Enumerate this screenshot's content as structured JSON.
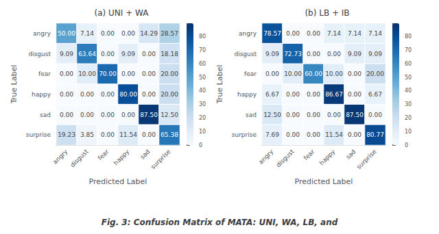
{
  "caption": "Fig. 3: Confusion Matrix of MATA: UNI, WA, LB, and",
  "chart_data": [
    {
      "type": "heatmap",
      "title": "(a) UNI + WA",
      "xlabel": "Predicted Label",
      "ylabel": "True Label",
      "categories": [
        "angry",
        "disgust",
        "fear",
        "happy",
        "sad",
        "surprise"
      ],
      "values": [
        [
          50.0,
          7.14,
          0.0,
          0.0,
          14.29,
          28.57
        ],
        [
          9.09,
          63.64,
          0.0,
          9.09,
          0.0,
          18.18
        ],
        [
          0.0,
          10.0,
          70.0,
          0.0,
          0.0,
          20.0
        ],
        [
          0.0,
          0.0,
          0.0,
          80.0,
          0.0,
          20.0
        ],
        [
          0.0,
          0.0,
          0.0,
          0.0,
          87.5,
          12.5
        ],
        [
          19.23,
          3.85,
          0.0,
          11.54,
          0.0,
          65.38
        ]
      ],
      "value_labels": [
        [
          "50.00",
          "7.14",
          "0.00",
          "0.00",
          "14.29",
          "28.57"
        ],
        [
          "9.09",
          "63.64",
          "0.00",
          "9.09",
          "0.00",
          "18.18"
        ],
        [
          "0.00",
          "10.00",
          "70.00",
          "0.00",
          "0.00",
          "20.00"
        ],
        [
          "0.00",
          "0.00",
          "0.00",
          "80.00",
          "0.00",
          "20.00"
        ],
        [
          "0.00",
          "0.00",
          "0.00",
          "0.00",
          "87.50",
          "12.50"
        ],
        [
          "19.23",
          "3.85",
          "0.00",
          "11.54",
          "0.00",
          "65.38"
        ]
      ],
      "data_labels": true,
      "colorbar_range": [
        0,
        90
      ],
      "colorbar_ticks": [
        0,
        10,
        20,
        30,
        40,
        50,
        60,
        70,
        80
      ]
    },
    {
      "type": "heatmap",
      "title": "(b) LB + IB",
      "xlabel": "Predicted Label",
      "ylabel": "True Label",
      "categories": [
        "angry",
        "disgust",
        "fear",
        "happy",
        "sad",
        "surprise"
      ],
      "values": [
        [
          78.57,
          0.0,
          0.0,
          7.14,
          7.14,
          7.14
        ],
        [
          9.09,
          72.73,
          0.0,
          0.0,
          9.09,
          9.09
        ],
        [
          0.0,
          10.0,
          60.0,
          10.0,
          0.0,
          20.0
        ],
        [
          6.67,
          0.0,
          0.0,
          86.67,
          0.0,
          6.67
        ],
        [
          12.5,
          0.0,
          0.0,
          0.0,
          87.5,
          0.0
        ],
        [
          7.69,
          0.0,
          0.0,
          11.54,
          0.0,
          80.77
        ]
      ],
      "value_labels": [
        [
          "78.57",
          "0.00",
          "0.00",
          "7.14",
          "7.14",
          "7.14"
        ],
        [
          "9.09",
          "72.73",
          "0.00",
          "0.00",
          "9.09",
          "9.09"
        ],
        [
          "0.00",
          "10.00",
          "60.00",
          "10.00",
          "0.00",
          "20.00"
        ],
        [
          "6.67",
          "0.00",
          "0.00",
          "86.67",
          "0.00",
          "6.67"
        ],
        [
          "12.50",
          "0.00",
          "0.00",
          "0.00",
          "87.50",
          "0.00"
        ],
        [
          "7.69",
          "0.00",
          "0.00",
          "11.54",
          "0.00",
          "80.77"
        ]
      ],
      "data_labels": true,
      "colorbar_range": [
        0,
        90
      ],
      "colorbar_ticks": [
        0,
        10,
        20,
        30,
        40,
        50,
        60,
        70,
        80
      ]
    }
  ]
}
